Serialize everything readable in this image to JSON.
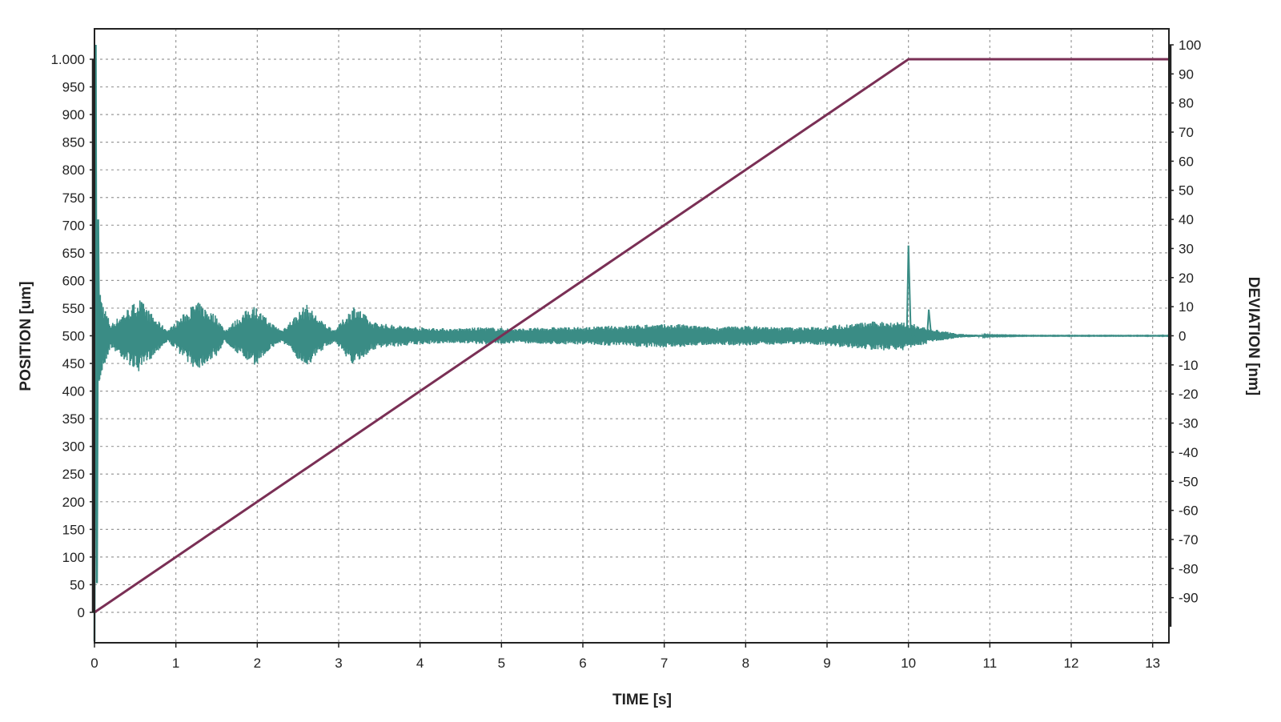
{
  "chart_data": {
    "type": "line",
    "title": "",
    "xlabel": "TIME [s]",
    "ylabel_left": "POSITION [um]",
    "ylabel_right": "DEVIATION [nm]",
    "xlim": [
      0,
      13.2
    ],
    "ylim_left": [
      -55,
      1055
    ],
    "ylim_right": [
      -105.5,
      105.5
    ],
    "x_ticks": [
      0,
      1,
      2,
      3,
      4,
      5,
      6,
      7,
      8,
      9,
      10,
      11,
      12,
      13
    ],
    "x_tick_labels": [
      "0",
      "1",
      "2",
      "3",
      "4",
      "5",
      "6",
      "7",
      "8",
      "9",
      "10",
      "11",
      "12",
      "13"
    ],
    "y_left_ticks": [
      0,
      50,
      100,
      150,
      200,
      250,
      300,
      350,
      400,
      450,
      500,
      550,
      600,
      650,
      700,
      750,
      800,
      850,
      900,
      950,
      1000
    ],
    "y_left_tick_labels": [
      "0",
      "50",
      "100",
      "150",
      "200",
      "250",
      "300",
      "350",
      "400",
      "450",
      "500",
      "550",
      "600",
      "650",
      "700",
      "750",
      "800",
      "850",
      "900",
      "950",
      "1.000"
    ],
    "y_right_ticks": [
      -90,
      -80,
      -70,
      -60,
      -50,
      -40,
      -30,
      -20,
      -10,
      0,
      10,
      20,
      30,
      40,
      50,
      60,
      70,
      80,
      90,
      100
    ],
    "y_right_tick_labels": [
      "-90",
      "-80",
      "-70",
      "-60",
      "-50",
      "-40",
      "-30",
      "-20",
      "-10",
      "0",
      "10",
      "20",
      "30",
      "40",
      "50",
      "60",
      "70",
      "80",
      "90",
      "100"
    ],
    "grid": true,
    "colors": {
      "position": "#7a2f55",
      "deviation": "#3a8c85",
      "grid": "#9a9a9a",
      "frame": "#222222"
    },
    "series": [
      {
        "axis": "left",
        "x": [
          0,
          10,
          13.2
        ],
        "y": [
          0,
          1000,
          1000
        ]
      },
      {
        "axis": "right",
        "envelope": {
          "x": [
            0,
            0.04,
            0.1,
            0.2,
            0.35,
            0.55,
            0.75,
            0.9,
            1.25,
            1.5,
            1.6,
            1.95,
            2.15,
            2.3,
            2.6,
            2.8,
            2.95,
            3.2,
            3.4,
            3.6,
            4.0,
            4.4,
            4.8,
            5.2,
            5.6,
            6.0,
            6.4,
            6.8,
            7.2,
            7.6,
            8.0,
            8.4,
            8.8,
            9.2,
            9.6,
            9.95,
            10.0,
            10.05,
            10.1,
            10.2,
            10.3,
            10.45,
            10.6,
            10.8,
            11.0,
            11.5,
            12.5,
            13.2
          ],
          "amplitude": [
            100,
            20,
            12,
            4,
            8,
            13,
            6,
            2,
            12,
            7,
            2,
            11,
            5,
            2,
            11,
            5,
            2,
            11,
            5,
            4,
            3,
            2.5,
            3,
            2.5,
            3,
            3,
            3.5,
            4,
            4,
            3,
            3.5,
            3,
            3,
            4,
            5,
            5,
            4,
            4,
            4,
            3,
            2,
            1.5,
            0.7,
            0.4,
            0.2,
            0.1,
            0.1,
            0.1
          ]
        },
        "spikes": [
          {
            "x": 10.0,
            "y": 31
          },
          {
            "x": 10.05,
            "y": -3
          },
          {
            "x": 10.25,
            "y": 9
          },
          {
            "x": 10.35,
            "y": 2
          }
        ]
      }
    ]
  }
}
